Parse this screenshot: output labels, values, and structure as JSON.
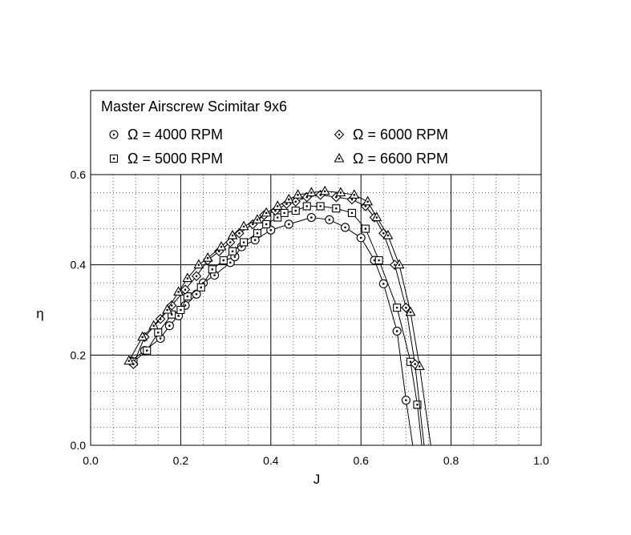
{
  "chart_data": {
    "type": "line",
    "title": "Master Airscrew Scimitar 9x6",
    "xlabel": "J",
    "ylabel": "η",
    "xlim": [
      0.0,
      1.0
    ],
    "ylim": [
      0.0,
      0.6
    ],
    "x_ticks": [
      "0.0",
      "0.2",
      "0.4",
      "0.6",
      "0.8",
      "1.0"
    ],
    "y_ticks": [
      "0.0",
      "0.2",
      "0.4",
      "0.6"
    ],
    "grid": true,
    "legend_position": "top",
    "series": [
      {
        "name": "Ω = 4000 RPM",
        "marker": "circle-dot",
        "points": [
          [
            0.09,
            0.187
          ],
          [
            0.12,
            0.21
          ],
          [
            0.155,
            0.237
          ],
          [
            0.175,
            0.265
          ],
          [
            0.195,
            0.287
          ],
          [
            0.21,
            0.31
          ],
          [
            0.235,
            0.335
          ],
          [
            0.25,
            0.36
          ],
          [
            0.275,
            0.377
          ],
          [
            0.31,
            0.405
          ],
          [
            0.32,
            0.418
          ],
          [
            0.335,
            0.44
          ],
          [
            0.365,
            0.455
          ],
          [
            0.4,
            0.477
          ],
          [
            0.44,
            0.49
          ],
          [
            0.49,
            0.505
          ],
          [
            0.53,
            0.5
          ],
          [
            0.565,
            0.483
          ],
          [
            0.6,
            0.46
          ],
          [
            0.63,
            0.41
          ],
          [
            0.65,
            0.358
          ],
          [
            0.68,
            0.253
          ],
          [
            0.7,
            0.1
          ],
          [
            0.715,
            0.0
          ]
        ]
      },
      {
        "name": "Ω = 5000 RPM",
        "marker": "square-dot",
        "points": [
          [
            0.095,
            0.185
          ],
          [
            0.125,
            0.21
          ],
          [
            0.15,
            0.25
          ],
          [
            0.18,
            0.29
          ],
          [
            0.2,
            0.3
          ],
          [
            0.215,
            0.33
          ],
          [
            0.245,
            0.35
          ],
          [
            0.27,
            0.39
          ],
          [
            0.295,
            0.41
          ],
          [
            0.315,
            0.43
          ],
          [
            0.34,
            0.45
          ],
          [
            0.37,
            0.47
          ],
          [
            0.39,
            0.49
          ],
          [
            0.415,
            0.505
          ],
          [
            0.43,
            0.515
          ],
          [
            0.455,
            0.52
          ],
          [
            0.48,
            0.53
          ],
          [
            0.51,
            0.53
          ],
          [
            0.545,
            0.525
          ],
          [
            0.58,
            0.515
          ],
          [
            0.61,
            0.48
          ],
          [
            0.64,
            0.41
          ],
          [
            0.68,
            0.305
          ],
          [
            0.71,
            0.185
          ],
          [
            0.725,
            0.09
          ],
          [
            0.735,
            0.0
          ]
        ]
      },
      {
        "name": "Ω = 6000 RPM",
        "marker": "diamond-dot",
        "points": [
          [
            0.095,
            0.18
          ],
          [
            0.12,
            0.24
          ],
          [
            0.155,
            0.28
          ],
          [
            0.18,
            0.31
          ],
          [
            0.21,
            0.345
          ],
          [
            0.235,
            0.375
          ],
          [
            0.26,
            0.41
          ],
          [
            0.285,
            0.43
          ],
          [
            0.31,
            0.45
          ],
          [
            0.33,
            0.47
          ],
          [
            0.36,
            0.49
          ],
          [
            0.385,
            0.51
          ],
          [
            0.41,
            0.52
          ],
          [
            0.435,
            0.535
          ],
          [
            0.455,
            0.54
          ],
          [
            0.48,
            0.55
          ],
          [
            0.51,
            0.555
          ],
          [
            0.545,
            0.55
          ],
          [
            0.58,
            0.545
          ],
          [
            0.61,
            0.53
          ],
          [
            0.63,
            0.505
          ],
          [
            0.65,
            0.47
          ],
          [
            0.675,
            0.4
          ],
          [
            0.7,
            0.305
          ],
          [
            0.72,
            0.18
          ],
          [
            0.74,
            0.0
          ]
        ]
      },
      {
        "name": "Ω = 6600 RPM",
        "marker": "triangle-dot",
        "points": [
          [
            0.085,
            0.187
          ],
          [
            0.115,
            0.24
          ],
          [
            0.14,
            0.265
          ],
          [
            0.17,
            0.3
          ],
          [
            0.195,
            0.34
          ],
          [
            0.215,
            0.37
          ],
          [
            0.24,
            0.4
          ],
          [
            0.26,
            0.415
          ],
          [
            0.29,
            0.44
          ],
          [
            0.315,
            0.465
          ],
          [
            0.34,
            0.485
          ],
          [
            0.37,
            0.5
          ],
          [
            0.39,
            0.515
          ],
          [
            0.415,
            0.53
          ],
          [
            0.44,
            0.545
          ],
          [
            0.46,
            0.555
          ],
          [
            0.49,
            0.56
          ],
          [
            0.52,
            0.563
          ],
          [
            0.555,
            0.56
          ],
          [
            0.585,
            0.555
          ],
          [
            0.615,
            0.54
          ],
          [
            0.635,
            0.505
          ],
          [
            0.66,
            0.465
          ],
          [
            0.685,
            0.4
          ],
          [
            0.71,
            0.295
          ],
          [
            0.73,
            0.175
          ],
          [
            0.755,
            0.0
          ]
        ]
      }
    ]
  }
}
